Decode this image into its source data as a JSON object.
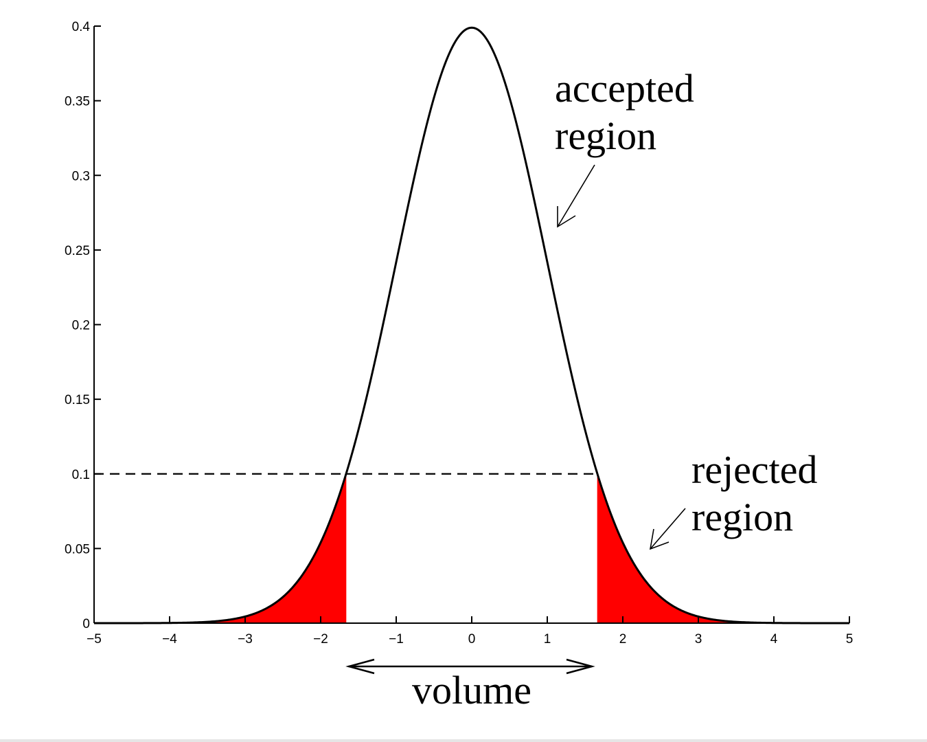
{
  "chart_data": {
    "type": "area",
    "title": "",
    "xlabel": "",
    "ylabel": "",
    "xlim": [
      -5,
      5
    ],
    "ylim": [
      0,
      0.4
    ],
    "grid": false,
    "x_ticks": [
      "-5",
      "-4",
      "-3",
      "-2",
      "-1",
      "0",
      "1",
      "2",
      "3",
      "4",
      "5"
    ],
    "y_ticks": [
      "0",
      "0.05",
      "0.1",
      "0.15",
      "0.2",
      "0.25",
      "0.3",
      "0.35",
      "0.4"
    ],
    "curve": {
      "distribution": "standard normal pdf",
      "mean": 0,
      "std": 1
    },
    "threshold": {
      "y": 0.1,
      "x_left": -1.66,
      "x_right": 1.66,
      "style": "dashed"
    },
    "shaded_tails": {
      "color": "#ff0000",
      "left_range": [
        -5,
        -1.66
      ],
      "right_range": [
        1.66,
        5
      ]
    },
    "annotations": {
      "accepted_line1": "accepted",
      "accepted_line2": "region",
      "rejected_line1": "rejected",
      "rejected_line2": "region",
      "volume": "volume"
    }
  }
}
